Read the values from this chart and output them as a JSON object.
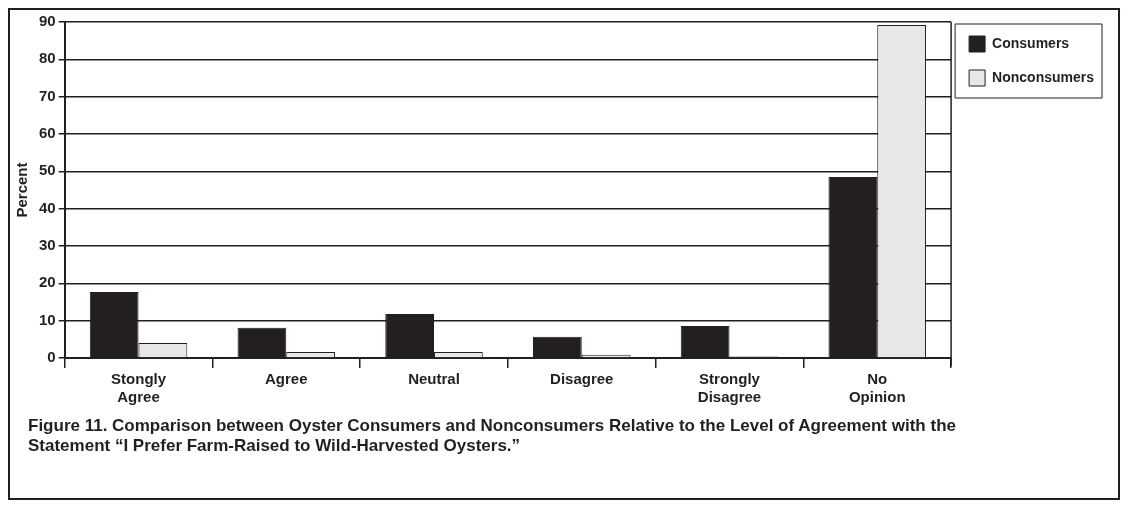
{
  "chart_data": {
    "type": "bar",
    "ylabel": "Percent",
    "categories": [
      "Stongly Agree",
      "Agree",
      "Neutral",
      "Disagree",
      "Strongly Disagree",
      "No Opinion"
    ],
    "series": [
      {
        "name": "Consumers",
        "color": "#231f20",
        "values": [
          17.7,
          8.1,
          11.8,
          5.7,
          8.6,
          48.5
        ]
      },
      {
        "name": "Nonconsumers",
        "color": "#e6e7e8",
        "values": [
          4,
          1.6,
          1.6,
          0.9,
          0.4,
          89.2
        ]
      }
    ],
    "ylim": [
      0,
      90
    ],
    "yticks": [
      0,
      10,
      20,
      30,
      40,
      50,
      60,
      70,
      80,
      90
    ],
    "grid": "y",
    "legend": "top right",
    "annotations": [
      "Figure 11. Comparison between Oyster Consumers and Nonconsumers Relative to the Level of Agreement with the Statement “I Prefer Farm-Raised to Wild-Harvested Oysters.”"
    ]
  }
}
